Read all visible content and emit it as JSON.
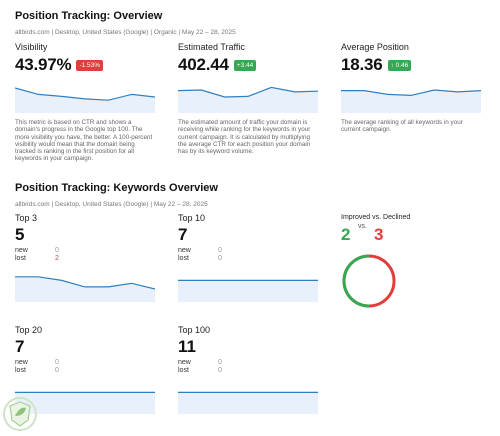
{
  "overview": {
    "title": "Position Tracking: Overview",
    "meta": "allbirds.com | Desktop, United States (Google) | Organic | May 22 – 28, 2025",
    "widgets": [
      {
        "label": "Visibility",
        "value": "43.97%",
        "delta": "-1.53%",
        "delta_color": "#e13d3d",
        "description": "This metric is based on CTR and shows a domain's progress in the Google top 100. The more visibility you have, the better. A 100-percent visibility would mean that the domain being tracked is ranking in the first position for all keywords in your campaign.",
        "spark": [
          78,
          58,
          52,
          44,
          40,
          58,
          50
        ]
      },
      {
        "label": "Estimated Traffic",
        "value": "402.44",
        "delta": "+3.44",
        "delta_color": "#34a853",
        "description": "The estimated amount of traffic your domain is receiving while ranking for the keywords in your current campaign. It is calculated by multiplying the average CTR for each position your domain has by its keyword volume.",
        "spark": [
          70,
          72,
          50,
          52,
          80,
          66,
          68
        ]
      },
      {
        "label": "Average Position",
        "value": "18.36",
        "delta": "↑ 0.46",
        "delta_color": "#34a853",
        "description": "The average ranking of all keywords in your current campaign.",
        "spark": [
          70,
          70,
          58,
          55,
          72,
          66,
          70
        ]
      }
    ]
  },
  "keywords": {
    "title": "Position Tracking: Keywords Overview",
    "meta": "allbirds.com | Desktop, United States (Google) | May 22 – 28, 2025",
    "groups": [
      {
        "label": "Top 3",
        "value": "5",
        "new_label": "new",
        "new": "0",
        "lost_label": "lost",
        "lost": "2",
        "spark": [
          70,
          70,
          60,
          42,
          42,
          52,
          36
        ]
      },
      {
        "label": "Top 10",
        "value": "7",
        "new_label": "new",
        "new": "0",
        "lost_label": "lost",
        "lost": "0",
        "spark": [
          60,
          60,
          60,
          60,
          60,
          60,
          60
        ]
      },
      {
        "label": "Top 20",
        "value": "7",
        "new_label": "new",
        "new": "0",
        "lost_label": "lost",
        "lost": "0",
        "spark": [
          60,
          60,
          60,
          60,
          60,
          60,
          60
        ]
      },
      {
        "label": "Top 100",
        "value": "11",
        "new_label": "new",
        "new": "0",
        "lost_label": "lost",
        "lost": "0",
        "spark": [
          60,
          60,
          60,
          60,
          60,
          60,
          60
        ]
      }
    ],
    "improved": {
      "title": "Improved vs. Declined",
      "vs": "vs.",
      "improved": "2",
      "declined": "3",
      "improved_color": "#34a853",
      "declined_color": "#e13d3d"
    }
  },
  "colors": {
    "line": "#2f7fc1",
    "fill": "#e8f1fb"
  },
  "logo_icon": "leaf-shield-icon"
}
